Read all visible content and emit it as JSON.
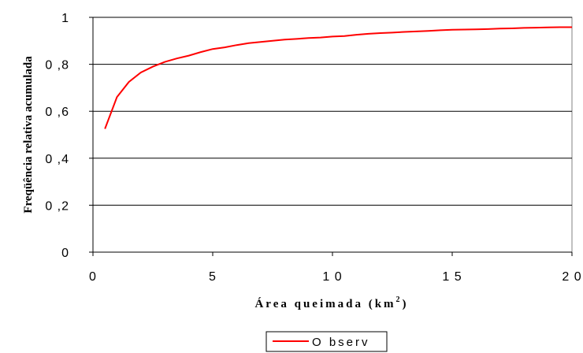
{
  "chart_data": {
    "type": "line",
    "xlabel": "Área queimada (km",
    "xlabel_sup": "2",
    "xlabel_end": ")",
    "ylabel": "Freqüência relativa acumulada",
    "xlim": [
      0,
      20
    ],
    "ylim": [
      0,
      1
    ],
    "x_ticks": [
      "0",
      "5",
      "1 0",
      "1 5",
      "2 0"
    ],
    "x_tick_values": [
      0,
      5,
      10,
      15,
      20
    ],
    "y_ticks": [
      "0",
      "0 ,2",
      "0 ,4",
      "0 ,6",
      "0 ,8",
      "1"
    ],
    "y_tick_values": [
      0,
      0.2,
      0.4,
      0.6,
      0.8,
      1
    ],
    "grid": "horizontal",
    "legend_position": "bottom-center",
    "series_color": "#ff0000",
    "series": [
      {
        "name": "O bserv",
        "x": [
          0.5,
          1,
          1.5,
          2,
          2.5,
          3,
          3.5,
          4,
          4.5,
          5,
          5.5,
          6,
          6.5,
          7,
          7.5,
          8,
          8.5,
          9,
          9.5,
          10,
          10.5,
          11,
          11.5,
          12,
          12.5,
          13,
          13.5,
          14,
          14.5,
          15,
          15.5,
          16,
          16.5,
          17,
          17.5,
          18,
          18.5,
          19,
          19.5,
          20
        ],
        "y": [
          0.525,
          0.66,
          0.725,
          0.765,
          0.79,
          0.81,
          0.825,
          0.837,
          0.852,
          0.865,
          0.872,
          0.882,
          0.89,
          0.895,
          0.9,
          0.905,
          0.908,
          0.912,
          0.914,
          0.918,
          0.92,
          0.926,
          0.93,
          0.933,
          0.935,
          0.938,
          0.94,
          0.942,
          0.945,
          0.947,
          0.948,
          0.949,
          0.95,
          0.952,
          0.953,
          0.955,
          0.956,
          0.957,
          0.958,
          0.958
        ]
      }
    ]
  }
}
